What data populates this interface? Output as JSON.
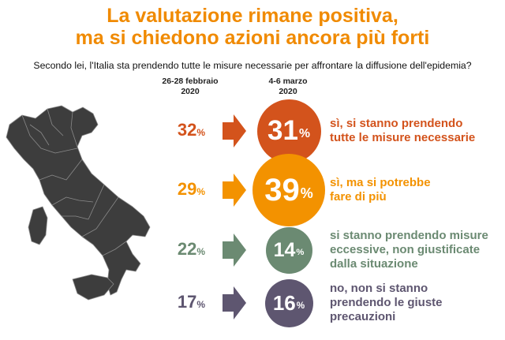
{
  "title_line1": "La valutazione rimane positiva,",
  "title_line2": "ma si chiedono azioni ancora più forti",
  "question": "Secondo lei, l'Italia sta prendendo tutte le misure necessarie per affrontare la diffusione dell'epidemia?",
  "col_prev_line1": "26-28 febbraio",
  "col_prev_line2": "2020",
  "col_curr_line1": "4-6 marzo",
  "col_curr_line2": "2020",
  "percent_sign": "%",
  "chart_data": {
    "type": "table",
    "categories": [
      "sì, si stanno prendendo tutte le misure necessarie",
      "sì, ma si potrebbe fare di più",
      "si stanno prendendo misure eccessive, non giustificate dalla situazione",
      "no, non si stanno prendendo le giuste precauzioni"
    ],
    "series": [
      {
        "name": "26-28 febbraio 2020",
        "values": [
          32,
          29,
          22,
          17
        ]
      },
      {
        "name": "4-6 marzo 2020",
        "values": [
          31,
          39,
          14,
          16
        ]
      }
    ],
    "colors": [
      "#d3531c",
      "#f39200",
      "#6b8a72",
      "#5e5670"
    ]
  },
  "rows": [
    {
      "prev": "32",
      "curr": "31",
      "label_lines": [
        "sì, si stanno prendendo",
        "tutte le misure necessarie"
      ],
      "color": "#d3531c"
    },
    {
      "prev": "29",
      "curr": "39",
      "label_lines": [
        "sì, ma si potrebbe",
        "fare di più"
      ],
      "color": "#f39200"
    },
    {
      "prev": "22",
      "curr": "14",
      "label_lines": [
        "si stanno prendendo misure",
        "eccessive, non giustificate",
        "dalla situazione"
      ],
      "color": "#6b8a72"
    },
    {
      "prev": "17",
      "curr": "16",
      "label_lines": [
        "no, non si stanno",
        "prendendo le giuste",
        "precauzioni"
      ],
      "color": "#5e5670"
    }
  ],
  "map_icon": "italy-map-icon"
}
